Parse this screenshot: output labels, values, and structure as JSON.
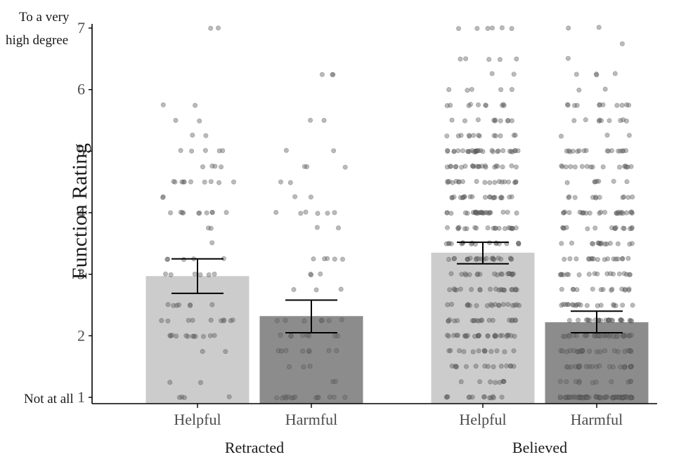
{
  "chart_data": {
    "type": "bar",
    "ylabel": "Function Rating",
    "ylim": [
      1,
      7
    ],
    "yticks": [
      "1",
      "2",
      "3",
      "4",
      "5",
      "6",
      "7"
    ],
    "anchor_top": [
      "To a very",
      "high degree"
    ],
    "anchor_bottom": "Not at all",
    "groups": [
      {
        "label": "Retracted",
        "categories": [
          "Helpful",
          "Harmful"
        ]
      },
      {
        "label": "Believed",
        "categories": [
          "Helpful",
          "Harmful"
        ]
      }
    ],
    "bars": [
      {
        "group": "Retracted",
        "category": "Helpful",
        "mean": 2.97,
        "ci": [
          2.69,
          3.25
        ],
        "color": "#cccccc"
      },
      {
        "group": "Retracted",
        "category": "Harmful",
        "mean": 2.32,
        "ci": [
          2.05,
          2.58
        ],
        "color": "#8c8c8c"
      },
      {
        "group": "Believed",
        "category": "Helpful",
        "mean": 3.35,
        "ci": [
          3.17,
          3.52
        ],
        "color": "#cccccc"
      },
      {
        "group": "Believed",
        "category": "Harmful",
        "mean": 2.22,
        "ci": [
          2.05,
          2.4
        ],
        "color": "#8c8c8c"
      }
    ],
    "points_per_bar": [
      90,
      75,
      380,
      380
    ],
    "point_color": "#666666",
    "grid": false
  }
}
